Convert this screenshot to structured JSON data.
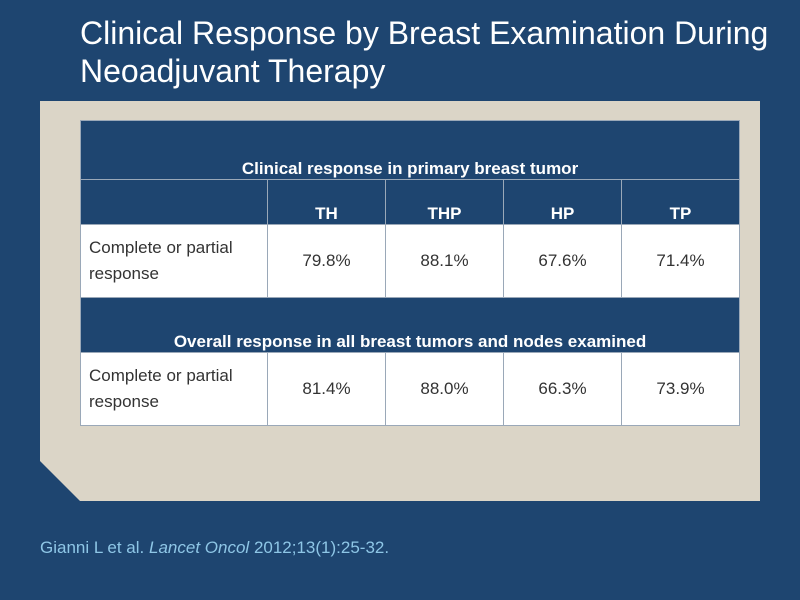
{
  "title": "Clinical Response by Breast Examination During Neoadjuvant Therapy",
  "table": {
    "columns": [
      "TH",
      "THP",
      "HP",
      "TP"
    ],
    "sections": [
      {
        "heading": "Clinical response in primary breast tumor",
        "row_label": "Complete or partial response",
        "values": [
          "79.8%",
          "88.1%",
          "67.6%",
          "71.4%"
        ]
      },
      {
        "heading": "Overall response in all breast tumors and nodes examined",
        "row_label": "Complete or partial response",
        "values": [
          "81.4%",
          "88.0%",
          "66.3%",
          "73.9%"
        ]
      }
    ]
  },
  "citation": {
    "authors": "Gianni L et al.",
    "journal": "Lancet Oncol",
    "reference": "2012;13(1):25-32."
  },
  "colors": {
    "background": "#1e4570",
    "panel": "#dbd5c7",
    "citation_text": "#8ec6e6"
  }
}
